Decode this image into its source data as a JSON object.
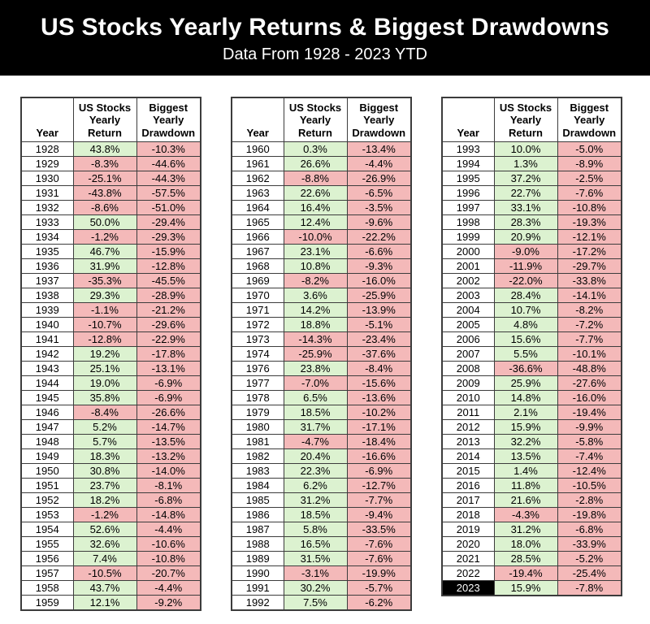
{
  "header": {
    "title": "US Stocks Yearly Returns & Biggest Drawdowns",
    "subtitle": "Data From 1928 - 2023 YTD"
  },
  "colors": {
    "banner_bg": "#000000",
    "banner_text": "#ffffff",
    "positive_cell": "#dcf2d0",
    "negative_cell": "#f4b9b9",
    "border": "#3c3c3c",
    "highlight_year_bg": "#000000",
    "highlight_year_text": "#ffffff"
  },
  "chart_data": {
    "type": "table",
    "title": "US Stocks Yearly Returns & Biggest Drawdowns",
    "subtitle": "Data From 1928 - 2023 YTD",
    "columns": [
      "Year",
      "US Stocks Yearly Return",
      "Biggest Yearly Drawdown"
    ],
    "highlighted_year": "2023",
    "tables": [
      {
        "rows": [
          [
            "1928",
            "43.8%",
            "-10.3%"
          ],
          [
            "1929",
            "-8.3%",
            "-44.6%"
          ],
          [
            "1930",
            "-25.1%",
            "-44.3%"
          ],
          [
            "1931",
            "-43.8%",
            "-57.5%"
          ],
          [
            "1932",
            "-8.6%",
            "-51.0%"
          ],
          [
            "1933",
            "50.0%",
            "-29.4%"
          ],
          [
            "1934",
            "-1.2%",
            "-29.3%"
          ],
          [
            "1935",
            "46.7%",
            "-15.9%"
          ],
          [
            "1936",
            "31.9%",
            "-12.8%"
          ],
          [
            "1937",
            "-35.3%",
            "-45.5%"
          ],
          [
            "1938",
            "29.3%",
            "-28.9%"
          ],
          [
            "1939",
            "-1.1%",
            "-21.2%"
          ],
          [
            "1940",
            "-10.7%",
            "-29.6%"
          ],
          [
            "1941",
            "-12.8%",
            "-22.9%"
          ],
          [
            "1942",
            "19.2%",
            "-17.8%"
          ],
          [
            "1943",
            "25.1%",
            "-13.1%"
          ],
          [
            "1944",
            "19.0%",
            "-6.9%"
          ],
          [
            "1945",
            "35.8%",
            "-6.9%"
          ],
          [
            "1946",
            "-8.4%",
            "-26.6%"
          ],
          [
            "1947",
            "5.2%",
            "-14.7%"
          ],
          [
            "1948",
            "5.7%",
            "-13.5%"
          ],
          [
            "1949",
            "18.3%",
            "-13.2%"
          ],
          [
            "1950",
            "30.8%",
            "-14.0%"
          ],
          [
            "1951",
            "23.7%",
            "-8.1%"
          ],
          [
            "1952",
            "18.2%",
            "-6.8%"
          ],
          [
            "1953",
            "-1.2%",
            "-14.8%"
          ],
          [
            "1954",
            "52.6%",
            "-4.4%"
          ],
          [
            "1955",
            "32.6%",
            "-10.6%"
          ],
          [
            "1956",
            "7.4%",
            "-10.8%"
          ],
          [
            "1957",
            "-10.5%",
            "-20.7%"
          ],
          [
            "1958",
            "43.7%",
            "-4.4%"
          ],
          [
            "1959",
            "12.1%",
            "-9.2%"
          ]
        ]
      },
      {
        "rows": [
          [
            "1960",
            "0.3%",
            "-13.4%"
          ],
          [
            "1961",
            "26.6%",
            "-4.4%"
          ],
          [
            "1962",
            "-8.8%",
            "-26.9%"
          ],
          [
            "1963",
            "22.6%",
            "-6.5%"
          ],
          [
            "1964",
            "16.4%",
            "-3.5%"
          ],
          [
            "1965",
            "12.4%",
            "-9.6%"
          ],
          [
            "1966",
            "-10.0%",
            "-22.2%"
          ],
          [
            "1967",
            "23.1%",
            "-6.6%"
          ],
          [
            "1968",
            "10.8%",
            "-9.3%"
          ],
          [
            "1969",
            "-8.2%",
            "-16.0%"
          ],
          [
            "1970",
            "3.6%",
            "-25.9%"
          ],
          [
            "1971",
            "14.2%",
            "-13.9%"
          ],
          [
            "1972",
            "18.8%",
            "-5.1%"
          ],
          [
            "1973",
            "-14.3%",
            "-23.4%"
          ],
          [
            "1974",
            "-25.9%",
            "-37.6%"
          ],
          [
            "1976",
            "23.8%",
            "-8.4%"
          ],
          [
            "1977",
            "-7.0%",
            "-15.6%"
          ],
          [
            "1978",
            "6.5%",
            "-13.6%"
          ],
          [
            "1979",
            "18.5%",
            "-10.2%"
          ],
          [
            "1980",
            "31.7%",
            "-17.1%"
          ],
          [
            "1981",
            "-4.7%",
            "-18.4%"
          ],
          [
            "1982",
            "20.4%",
            "-16.6%"
          ],
          [
            "1983",
            "22.3%",
            "-6.9%"
          ],
          [
            "1984",
            "6.2%",
            "-12.7%"
          ],
          [
            "1985",
            "31.2%",
            "-7.7%"
          ],
          [
            "1986",
            "18.5%",
            "-9.4%"
          ],
          [
            "1987",
            "5.8%",
            "-33.5%"
          ],
          [
            "1988",
            "16.5%",
            "-7.6%"
          ],
          [
            "1989",
            "31.5%",
            "-7.6%"
          ],
          [
            "1990",
            "-3.1%",
            "-19.9%"
          ],
          [
            "1991",
            "30.2%",
            "-5.7%"
          ],
          [
            "1992",
            "7.5%",
            "-6.2%"
          ]
        ]
      },
      {
        "rows": [
          [
            "1993",
            "10.0%",
            "-5.0%"
          ],
          [
            "1994",
            "1.3%",
            "-8.9%"
          ],
          [
            "1995",
            "37.2%",
            "-2.5%"
          ],
          [
            "1996",
            "22.7%",
            "-7.6%"
          ],
          [
            "1997",
            "33.1%",
            "-10.8%"
          ],
          [
            "1998",
            "28.3%",
            "-19.3%"
          ],
          [
            "1999",
            "20.9%",
            "-12.1%"
          ],
          [
            "2000",
            "-9.0%",
            "-17.2%"
          ],
          [
            "2001",
            "-11.9%",
            "-29.7%"
          ],
          [
            "2002",
            "-22.0%",
            "-33.8%"
          ],
          [
            "2003",
            "28.4%",
            "-14.1%"
          ],
          [
            "2004",
            "10.7%",
            "-8.2%"
          ],
          [
            "2005",
            "4.8%",
            "-7.2%"
          ],
          [
            "2006",
            "15.6%",
            "-7.7%"
          ],
          [
            "2007",
            "5.5%",
            "-10.1%"
          ],
          [
            "2008",
            "-36.6%",
            "-48.8%"
          ],
          [
            "2009",
            "25.9%",
            "-27.6%"
          ],
          [
            "2010",
            "14.8%",
            "-16.0%"
          ],
          [
            "2011",
            "2.1%",
            "-19.4%"
          ],
          [
            "2012",
            "15.9%",
            "-9.9%"
          ],
          [
            "2013",
            "32.2%",
            "-5.8%"
          ],
          [
            "2014",
            "13.5%",
            "-7.4%"
          ],
          [
            "2015",
            "1.4%",
            "-12.4%"
          ],
          [
            "2016",
            "11.8%",
            "-10.5%"
          ],
          [
            "2017",
            "21.6%",
            "-2.8%"
          ],
          [
            "2018",
            "-4.3%",
            "-19.8%"
          ],
          [
            "2019",
            "31.2%",
            "-6.8%"
          ],
          [
            "2020",
            "18.0%",
            "-33.9%"
          ],
          [
            "2021",
            "28.5%",
            "-5.2%"
          ],
          [
            "2022",
            "-19.4%",
            "-25.4%"
          ],
          [
            "2023",
            "15.9%",
            "-7.8%"
          ]
        ]
      }
    ]
  }
}
